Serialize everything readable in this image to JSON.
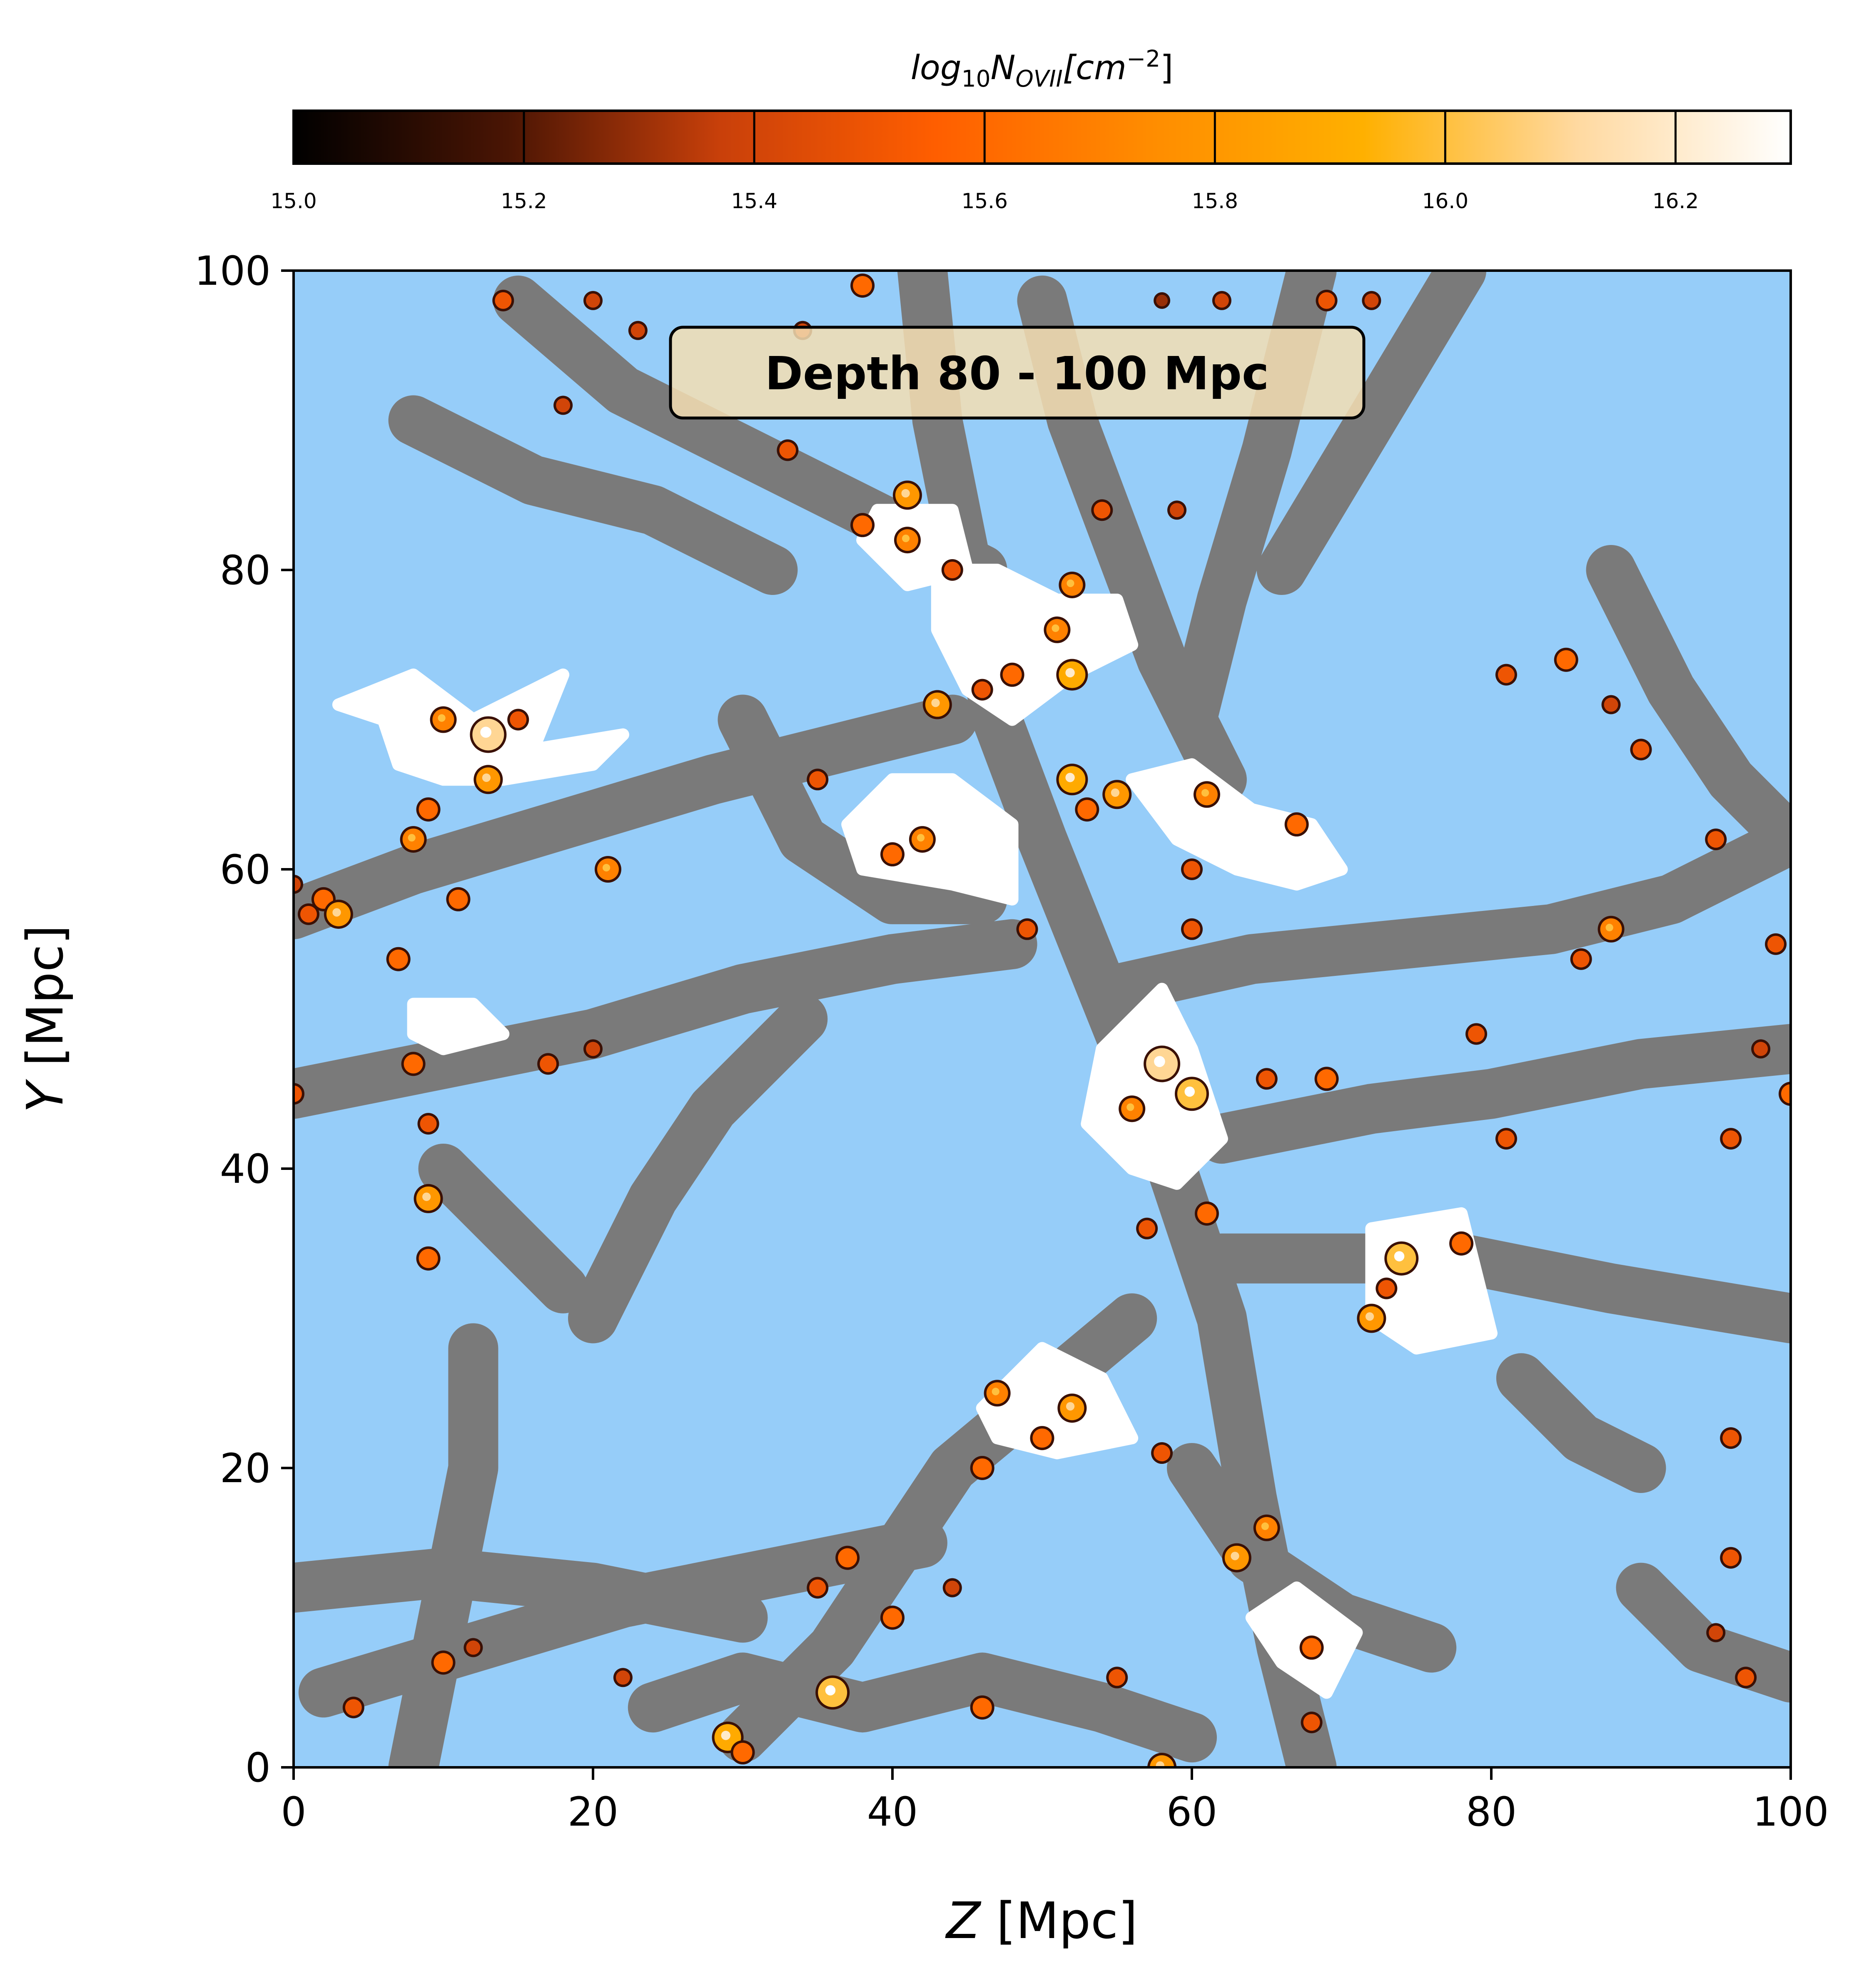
{
  "chart_data": {
    "type": "heatmap",
    "title": "",
    "annotation": "Depth 80 - 100 Mpc",
    "xlabel": {
      "var": "Z",
      "unit": "[Mpc]"
    },
    "ylabel": {
      "var": "Y",
      "unit": "[Mpc]"
    },
    "xlim": [
      0,
      100
    ],
    "ylim": [
      0,
      100
    ],
    "x_ticks": [
      0,
      20,
      40,
      60,
      80,
      100
    ],
    "y_ticks": [
      0,
      20,
      40,
      60,
      80,
      100
    ],
    "x_tick_labels": [
      "0",
      "20",
      "40",
      "60",
      "80",
      "100"
    ],
    "y_tick_labels": [
      "0",
      "20",
      "40",
      "60",
      "80",
      "100"
    ],
    "colorbar": {
      "label": "log10N_OVII[cm^-2]",
      "label_parts": {
        "base": "log",
        "base_sub": "10",
        "sym": "N",
        "sym_sub": "OVII",
        "unit_open": "[cm",
        "unit_sup": "−2",
        "unit_close": "]"
      },
      "orientation": "horizontal",
      "placement": "top",
      "range": [
        15.0,
        16.3
      ],
      "ticks": [
        15.0,
        15.2,
        15.4,
        15.6,
        15.8,
        16.0,
        16.2
      ],
      "tick_labels": [
        "15.0",
        "15.2",
        "15.4",
        "15.6",
        "15.8",
        "16.0",
        "16.2"
      ],
      "colormap": "gist_heat-like (black → dark red → orange → white)"
    },
    "colors": {
      "background": "#96cdf9",
      "filaments": "#7a7a7a",
      "hot_regions": "#ffffff",
      "cmap_stops": [
        "#000000",
        "#4a1504",
        "#c9400a",
        "#ff5e00",
        "#ff8c00",
        "#ffb000",
        "#ffd9a0",
        "#ffffff"
      ]
    },
    "grid": false,
    "legend": "none",
    "filaments": [
      [
        [
          0,
          57
        ],
        [
          8,
          60
        ],
        [
          18,
          63
        ],
        [
          28,
          66
        ],
        [
          36,
          68
        ],
        [
          44,
          70
        ]
      ],
      [
        [
          0,
          45
        ],
        [
          10,
          47
        ],
        [
          20,
          49
        ],
        [
          30,
          52
        ],
        [
          40,
          54
        ],
        [
          48,
          55
        ]
      ],
      [
        [
          2,
          5
        ],
        [
          12,
          8
        ],
        [
          22,
          11
        ],
        [
          32,
          13
        ],
        [
          42,
          15
        ]
      ],
      [
        [
          0,
          12
        ],
        [
          10,
          13
        ],
        [
          20,
          12
        ],
        [
          30,
          10
        ]
      ],
      [
        [
          15,
          98
        ],
        [
          22,
          92
        ],
        [
          30,
          88
        ],
        [
          38,
          84
        ],
        [
          46,
          80
        ]
      ],
      [
        [
          42,
          100
        ],
        [
          43,
          90
        ],
        [
          45,
          80
        ],
        [
          47,
          70
        ],
        [
          50,
          62
        ],
        [
          54,
          52
        ],
        [
          58,
          42
        ],
        [
          62,
          30
        ],
        [
          64,
          18
        ],
        [
          66,
          8
        ],
        [
          68,
          0
        ]
      ],
      [
        [
          50,
          98
        ],
        [
          52,
          90
        ],
        [
          55,
          82
        ],
        [
          58,
          74
        ],
        [
          62,
          66
        ]
      ],
      [
        [
          68,
          100
        ],
        [
          65,
          88
        ],
        [
          62,
          78
        ],
        [
          60,
          70
        ]
      ],
      [
        [
          78,
          100
        ],
        [
          72,
          90
        ],
        [
          66,
          80
        ]
      ],
      [
        [
          100,
          62
        ],
        [
          92,
          58
        ],
        [
          84,
          56
        ],
        [
          74,
          55
        ],
        [
          64,
          54
        ],
        [
          55,
          52
        ]
      ],
      [
        [
          100,
          48
        ],
        [
          90,
          47
        ],
        [
          80,
          45
        ],
        [
          72,
          44
        ],
        [
          62,
          42
        ]
      ],
      [
        [
          100,
          30
        ],
        [
          88,
          32
        ],
        [
          78,
          34
        ],
        [
          70,
          34
        ],
        [
          62,
          34
        ]
      ],
      [
        [
          56,
          30
        ],
        [
          50,
          25
        ],
        [
          44,
          20
        ],
        [
          40,
          14
        ],
        [
          36,
          8
        ],
        [
          30,
          2
        ]
      ],
      [
        [
          20,
          30
        ],
        [
          24,
          38
        ],
        [
          28,
          44
        ],
        [
          34,
          50
        ]
      ],
      [
        [
          8,
          0
        ],
        [
          10,
          10
        ],
        [
          12,
          20
        ],
        [
          12,
          28
        ]
      ],
      [
        [
          30,
          70
        ],
        [
          34,
          62
        ],
        [
          40,
          58
        ],
        [
          46,
          58
        ]
      ],
      [
        [
          8,
          90
        ],
        [
          16,
          86
        ],
        [
          24,
          84
        ],
        [
          32,
          80
        ]
      ],
      [
        [
          88,
          80
        ],
        [
          92,
          72
        ],
        [
          96,
          66
        ],
        [
          100,
          62
        ]
      ],
      [
        [
          90,
          12
        ],
        [
          94,
          8
        ],
        [
          100,
          6
        ]
      ],
      [
        [
          60,
          20
        ],
        [
          64,
          14
        ],
        [
          70,
          10
        ],
        [
          76,
          8
        ]
      ],
      [
        [
          10,
          40
        ],
        [
          14,
          36
        ],
        [
          18,
          32
        ]
      ],
      [
        [
          82,
          26
        ],
        [
          86,
          22
        ],
        [
          90,
          20
        ]
      ],
      [
        [
          24,
          4
        ],
        [
          30,
          6
        ],
        [
          38,
          4
        ],
        [
          46,
          6
        ],
        [
          54,
          4
        ],
        [
          60,
          2
        ]
      ]
    ],
    "hot_regions": [
      [
        [
          3,
          71
        ],
        [
          8,
          73
        ],
        [
          12,
          70
        ],
        [
          18,
          73
        ],
        [
          16,
          68
        ],
        [
          22,
          69
        ],
        [
          20,
          67
        ],
        [
          14,
          66
        ],
        [
          10,
          66
        ],
        [
          7,
          67
        ],
        [
          6,
          70
        ]
      ],
      [
        [
          40,
          66
        ],
        [
          44,
          66
        ],
        [
          48,
          63
        ],
        [
          48,
          58
        ],
        [
          44,
          59
        ],
        [
          38,
          60
        ],
        [
          37,
          63
        ]
      ],
      [
        [
          39,
          84
        ],
        [
          44,
          84
        ],
        [
          45,
          80
        ],
        [
          41,
          79
        ],
        [
          38,
          82
        ]
      ],
      [
        [
          43,
          80
        ],
        [
          47,
          80
        ],
        [
          51,
          78
        ],
        [
          55,
          78
        ],
        [
          56,
          75
        ],
        [
          52,
          73
        ],
        [
          48,
          70
        ],
        [
          45,
          72
        ],
        [
          43,
          76
        ]
      ],
      [
        [
          56,
          66
        ],
        [
          60,
          67
        ],
        [
          64,
          64
        ],
        [
          68,
          63
        ],
        [
          70,
          60
        ],
        [
          67,
          59
        ],
        [
          63,
          60
        ],
        [
          59,
          62
        ]
      ],
      [
        [
          54,
          48
        ],
        [
          58,
          52
        ],
        [
          60,
          48
        ],
        [
          62,
          42
        ],
        [
          59,
          39
        ],
        [
          56,
          40
        ],
        [
          53,
          43
        ]
      ],
      [
        [
          72,
          36
        ],
        [
          78,
          37
        ],
        [
          79,
          33
        ],
        [
          80,
          29
        ],
        [
          75,
          28
        ],
        [
          72,
          30
        ]
      ],
      [
        [
          46,
          24
        ],
        [
          50,
          28
        ],
        [
          54,
          26
        ],
        [
          56,
          22
        ],
        [
          51,
          21
        ],
        [
          47,
          22
        ]
      ],
      [
        [
          64,
          10
        ],
        [
          67,
          12
        ],
        [
          71,
          9
        ],
        [
          69,
          5
        ],
        [
          66,
          7
        ]
      ],
      [
        [
          8,
          51
        ],
        [
          12,
          51
        ],
        [
          14,
          49
        ],
        [
          10,
          48
        ],
        [
          8,
          49
        ]
      ]
    ],
    "hot_spots": [
      [
        13,
        69,
        16.1
      ],
      [
        13,
        66,
        15.8
      ],
      [
        10,
        70,
        15.7
      ],
      [
        9,
        64,
        15.6
      ],
      [
        8,
        62,
        15.7
      ],
      [
        15,
        70,
        15.5
      ],
      [
        2,
        58,
        15.6
      ],
      [
        1,
        57,
        15.5
      ],
      [
        3,
        57,
        15.8
      ],
      [
        0,
        59,
        15.4
      ],
      [
        11,
        58,
        15.6
      ],
      [
        21,
        60,
        15.7
      ],
      [
        7,
        54,
        15.6
      ],
      [
        17,
        47,
        15.5
      ],
      [
        20,
        48,
        15.4
      ],
      [
        9,
        43,
        15.5
      ],
      [
        9,
        38,
        15.8
      ],
      [
        9,
        34,
        15.6
      ],
      [
        8,
        47,
        15.6
      ],
      [
        0,
        45,
        15.5
      ],
      [
        41,
        85,
        15.8
      ],
      [
        38,
        83,
        15.6
      ],
      [
        41,
        82,
        15.7
      ],
      [
        44,
        80,
        15.5
      ],
      [
        43,
        71,
        15.8
      ],
      [
        35,
        66,
        15.5
      ],
      [
        42,
        62,
        15.7
      ],
      [
        40,
        61,
        15.6
      ],
      [
        46,
        72,
        15.5
      ],
      [
        48,
        73,
        15.6
      ],
      [
        52,
        73,
        15.9
      ],
      [
        51,
        76,
        15.7
      ],
      [
        52,
        66,
        15.9
      ],
      [
        53,
        64,
        15.6
      ],
      [
        55,
        65,
        15.8
      ],
      [
        61,
        65,
        15.7
      ],
      [
        67,
        63,
        15.6
      ],
      [
        60,
        60,
        15.5
      ],
      [
        49,
        56,
        15.5
      ],
      [
        60,
        56,
        15.5
      ],
      [
        58,
        47,
        16.1
      ],
      [
        60,
        45,
        16.0
      ],
      [
        56,
        44,
        15.7
      ],
      [
        61,
        37,
        15.6
      ],
      [
        57,
        36,
        15.5
      ],
      [
        65,
        46,
        15.5
      ],
      [
        69,
        46,
        15.6
      ],
      [
        72,
        30,
        15.8
      ],
      [
        74,
        34,
        16.0
      ],
      [
        73,
        32,
        15.5
      ],
      [
        78,
        35,
        15.6
      ],
      [
        79,
        49,
        15.5
      ],
      [
        81,
        42,
        15.5
      ],
      [
        88,
        56,
        15.7
      ],
      [
        86,
        54,
        15.5
      ],
      [
        95,
        62,
        15.5
      ],
      [
        52,
        24,
        15.8
      ],
      [
        47,
        25,
        15.7
      ],
      [
        50,
        22,
        15.6
      ],
      [
        46,
        20,
        15.6
      ],
      [
        58,
        21,
        15.5
      ],
      [
        65,
        16,
        15.7
      ],
      [
        63,
        14,
        15.8
      ],
      [
        68,
        8,
        15.6
      ],
      [
        68,
        3,
        15.5
      ],
      [
        58,
        0,
        15.8
      ],
      [
        29,
        2,
        15.9
      ],
      [
        30,
        1,
        15.6
      ],
      [
        36,
        5,
        16.0
      ],
      [
        40,
        10,
        15.6
      ],
      [
        46,
        4,
        15.6
      ],
      [
        35,
        12,
        15.5
      ],
      [
        37,
        14,
        15.6
      ],
      [
        44,
        12,
        15.4
      ],
      [
        55,
        6,
        15.5
      ],
      [
        12,
        8,
        15.4
      ],
      [
        4,
        4,
        15.5
      ],
      [
        10,
        7,
        15.6
      ],
      [
        22,
        6,
        15.4
      ],
      [
        85,
        74,
        15.6
      ],
      [
        81,
        73,
        15.5
      ],
      [
        88,
        71,
        15.4
      ],
      [
        90,
        68,
        15.5
      ],
      [
        99,
        55,
        15.5
      ],
      [
        100,
        45,
        15.6
      ],
      [
        96,
        42,
        15.5
      ],
      [
        98,
        48,
        15.4
      ],
      [
        96,
        22,
        15.5
      ],
      [
        96,
        14,
        15.5
      ],
      [
        95,
        9,
        15.4
      ],
      [
        97,
        6,
        15.5
      ],
      [
        34,
        96,
        15.4
      ],
      [
        20,
        98,
        15.4
      ],
      [
        23,
        96,
        15.4
      ],
      [
        14,
        98,
        15.5
      ],
      [
        38,
        99,
        15.6
      ],
      [
        62,
        98,
        15.4
      ],
      [
        58,
        98,
        15.3
      ],
      [
        72,
        98,
        15.4
      ],
      [
        69,
        98,
        15.5
      ],
      [
        18,
        91,
        15.4
      ],
      [
        33,
        88,
        15.5
      ],
      [
        54,
        84,
        15.5
      ],
      [
        52,
        79,
        15.7
      ],
      [
        59,
        84,
        15.4
      ]
    ]
  }
}
